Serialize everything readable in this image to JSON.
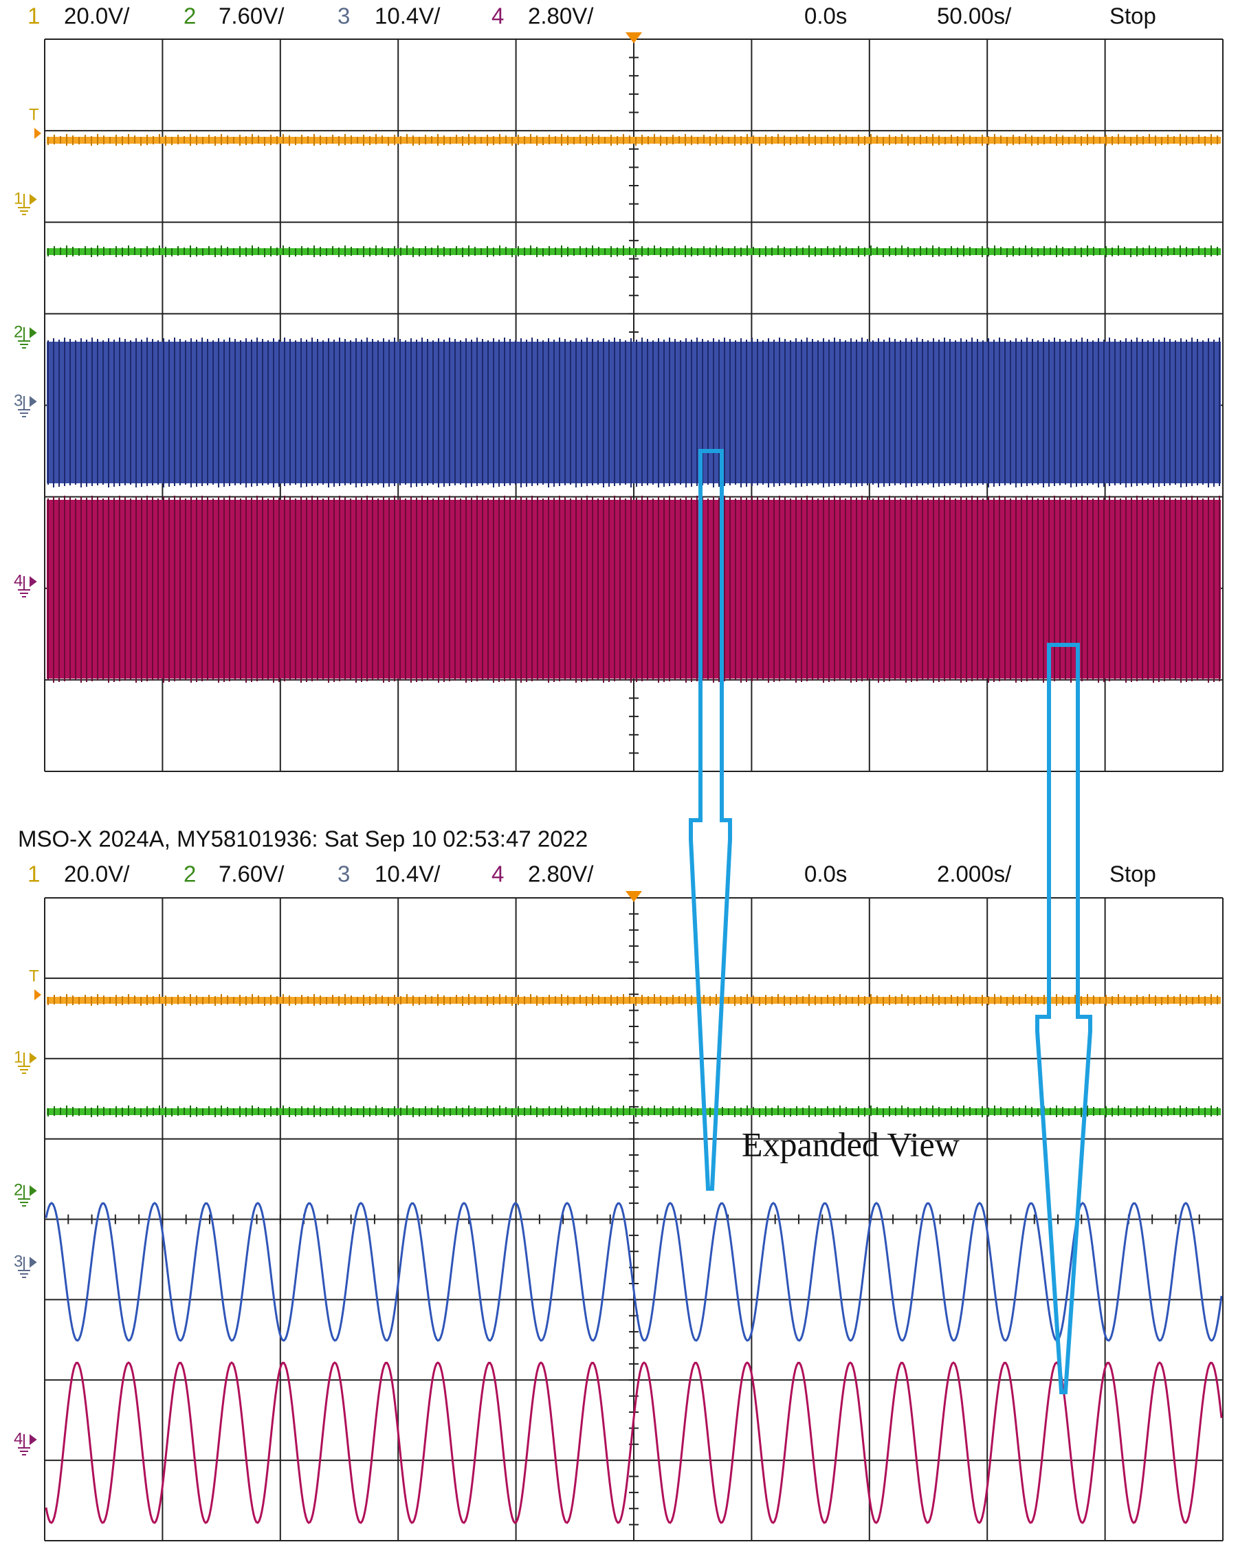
{
  "top_panel": {
    "channels": [
      {
        "number": "1",
        "scale": "20.0V/"
      },
      {
        "number": "2",
        "scale": "7.60V/"
      },
      {
        "number": "3",
        "scale": "10.4V/"
      },
      {
        "number": "4",
        "scale": "2.80V/"
      }
    ],
    "delay": "0.0s",
    "timebase": "50.00s/",
    "status": "Stop",
    "markers": [
      "T",
      "1",
      "2",
      "3",
      "4"
    ]
  },
  "bottom_panel": {
    "title": "MSO-X 2024A, MY58101936: Sat Sep 10 02:53:47 2022",
    "channels": [
      {
        "number": "1",
        "scale": "20.0V/"
      },
      {
        "number": "2",
        "scale": "7.60V/"
      },
      {
        "number": "3",
        "scale": "10.4V/"
      },
      {
        "number": "4",
        "scale": "2.80V/"
      }
    ],
    "delay": "0.0s",
    "timebase": "2.000s/",
    "status": "Stop",
    "markers": [
      "T",
      "1",
      "2",
      "3",
      "4"
    ]
  },
  "annotation": "Expanded View"
}
